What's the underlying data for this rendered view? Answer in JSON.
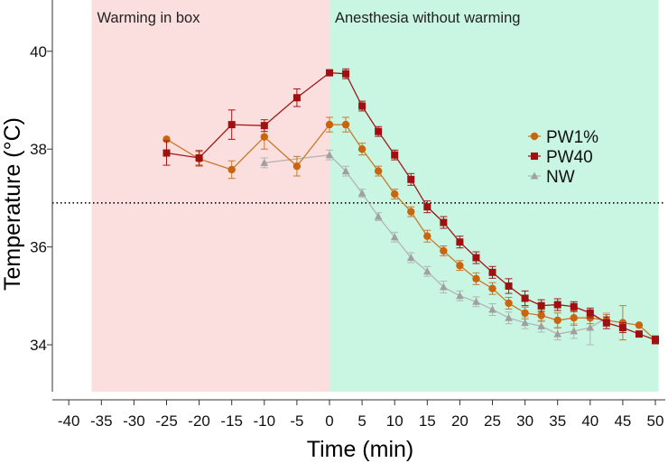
{
  "chart_data": {
    "type": "line",
    "title": "",
    "xlabel": "Time (min)",
    "ylabel": "Temperature (°C)",
    "xlim": [
      -40,
      50
    ],
    "ylim": [
      33,
      40.9
    ],
    "xticks": [
      -40,
      -35,
      -30,
      -25,
      -20,
      -15,
      -10,
      -5,
      0,
      5,
      10,
      15,
      20,
      25,
      30,
      35,
      40,
      45,
      50
    ],
    "yticks": [
      34,
      36,
      38,
      40
    ],
    "grid": false,
    "legend_position": "right",
    "regions": [
      {
        "label": "Warming in box",
        "x0": -36.5,
        "x1": 0,
        "color": "#fbdede"
      },
      {
        "label": "Anesthesia without warming",
        "x0": 0,
        "x1": 50.5,
        "color": "#c9f5e3"
      }
    ],
    "reference_line": {
      "y": 36.9,
      "style": "dotted"
    },
    "series": [
      {
        "name": "PW1%",
        "marker": "circle",
        "line_color": "#c87a2a",
        "marker_color": "#c8650f",
        "x": [
          -25,
          -20,
          -15,
          -10,
          -5,
          0,
          2.5,
          5,
          7.5,
          10,
          12.5,
          15,
          17.5,
          20,
          22.5,
          25,
          27.5,
          30,
          32.5,
          35,
          37.5,
          40,
          42.5,
          45,
          47.5,
          50
        ],
        "y": [
          38.2,
          37.8,
          37.58,
          38.25,
          37.65,
          38.5,
          38.5,
          38.0,
          37.55,
          37.08,
          36.72,
          36.22,
          35.92,
          35.62,
          35.35,
          35.15,
          34.85,
          34.65,
          34.6,
          34.5,
          34.55,
          34.55,
          34.5,
          34.45,
          34.4,
          34.1
        ],
        "err": [
          0,
          0.15,
          0.18,
          0.25,
          0.2,
          0.15,
          0.15,
          0.12,
          0.1,
          0.1,
          0.1,
          0.12,
          0.1,
          0.1,
          0.12,
          0.12,
          0.12,
          0.12,
          0.12,
          0.15,
          0.15,
          0.12,
          0.12,
          0.35,
          0,
          0.08
        ]
      },
      {
        "name": "PW40",
        "marker": "square",
        "line_color": "#a01818",
        "marker_color": "#a01010",
        "x": [
          -25,
          -20,
          -15,
          -10,
          -5,
          0,
          2.5,
          5,
          7.5,
          10,
          12.5,
          15,
          17.5,
          20,
          22.5,
          25,
          27.5,
          30,
          32.5,
          35,
          37.5,
          40,
          42.5,
          45,
          47.5,
          50
        ],
        "y": [
          37.92,
          37.82,
          38.5,
          38.48,
          39.05,
          39.56,
          39.54,
          38.88,
          38.36,
          37.88,
          37.38,
          36.82,
          36.5,
          36.1,
          35.78,
          35.48,
          35.2,
          34.95,
          34.8,
          34.82,
          34.78,
          34.65,
          34.45,
          34.35,
          34.22,
          34.1
        ],
        "err": [
          0.25,
          0.15,
          0.3,
          0.12,
          0.18,
          0,
          0.1,
          0.1,
          0.1,
          0.1,
          0.12,
          0.12,
          0.12,
          0.12,
          0.12,
          0.12,
          0.15,
          0.15,
          0.12,
          0.12,
          0.1,
          0.1,
          0.12,
          0.1,
          0,
          0.08
        ]
      },
      {
        "name": "NW",
        "marker": "triangle",
        "line_color": "#b4b4b4",
        "marker_color": "#a0a0a0",
        "x": [
          -10,
          0,
          2.5,
          5,
          7.5,
          10,
          12.5,
          15,
          17.5,
          20,
          22.5,
          25,
          27.5,
          30,
          32.5,
          35,
          37.5,
          40,
          42.5
        ],
        "y": [
          37.72,
          37.88,
          37.55,
          37.1,
          36.62,
          36.2,
          35.78,
          35.5,
          35.18,
          35.0,
          34.88,
          34.72,
          34.55,
          34.45,
          34.38,
          34.22,
          34.28,
          34.35,
          34.55
        ],
        "err": [
          0.1,
          0.1,
          0.1,
          0.08,
          0.08,
          0.1,
          0.1,
          0.1,
          0.12,
          0.1,
          0.1,
          0.12,
          0.12,
          0.12,
          0.12,
          0.12,
          0.15,
          0.35,
          0.1
        ]
      }
    ]
  }
}
